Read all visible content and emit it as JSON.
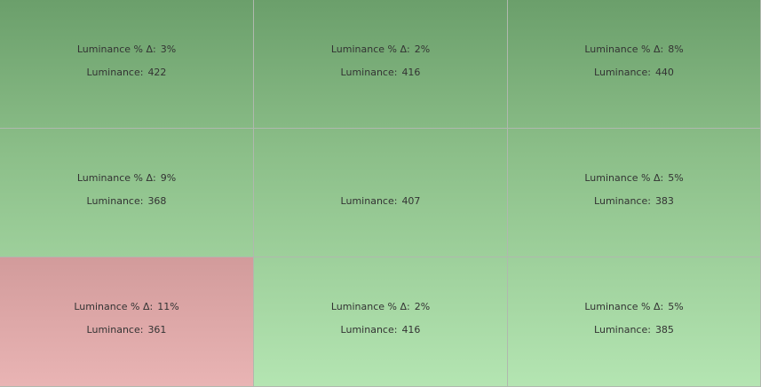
{
  "cells": [
    {
      "delta_label": "Luminance % Δ:",
      "delta": "3%",
      "luminance_label": "Luminance:",
      "luminance": 422
    },
    {
      "delta_label": "Luminance % Δ:",
      "delta": "2%",
      "luminance_label": "Luminance:",
      "luminance": 416
    },
    {
      "delta_label": "Luminance % Δ:",
      "delta": "8%",
      "luminance_label": "Luminance:",
      "luminance": 440
    },
    {
      "delta_label": "Luminance % Δ:",
      "delta": "9%",
      "luminance_label": "Luminance:",
      "luminance": 368
    },
    {
      "luminance_label": "Luminance:",
      "luminance": 407
    },
    {
      "delta_label": "Luminance % Δ:",
      "delta": "5%",
      "luminance_label": "Luminance:",
      "luminance": 383
    },
    {
      "delta_label": "Luminance % Δ:",
      "delta": "11%",
      "luminance_label": "Luminance:",
      "luminance": 361
    },
    {
      "delta_label": "Luminance % Δ:",
      "delta": "2%",
      "luminance_label": "Luminance:",
      "luminance": 416
    },
    {
      "delta_label": "Luminance % Δ:",
      "delta": "5%",
      "luminance_label": "Luminance:",
      "luminance": 385
    }
  ]
}
